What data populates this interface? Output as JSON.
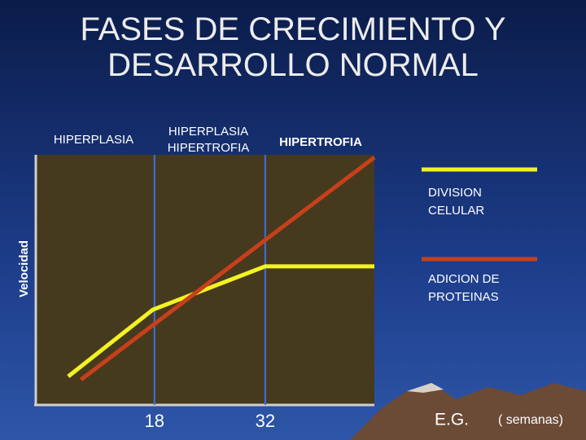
{
  "chart_data": {
    "type": "line",
    "title": "FASES DE CRECIMIENTO Y DESARROLLO NORMAL",
    "phases": [
      "HIPERPLASIA",
      "HIPERPLASIA HIPERTROFIA",
      "HIPERTROFIA"
    ],
    "y_label": "Velocidad",
    "x_label": "E.G.",
    "x_unit": "( semanas)",
    "xlim": [
      3,
      45.8
    ],
    "xticks": [
      18,
      32
    ],
    "ylim": [
      0,
      100
    ],
    "series": [
      {
        "name": "DIVISION CELULAR",
        "color": "#f2f224",
        "x": [
          7.1,
          17.8,
          32,
          45.8
        ],
        "values": [
          11.4,
          38.1,
          55.4,
          55.4
        ]
      },
      {
        "name": "ADICION DE PROTEINAS",
        "color": "#c8401a",
        "x": [
          8.7,
          45.8
        ],
        "values": [
          10.1,
          99
        ]
      }
    ]
  }
}
